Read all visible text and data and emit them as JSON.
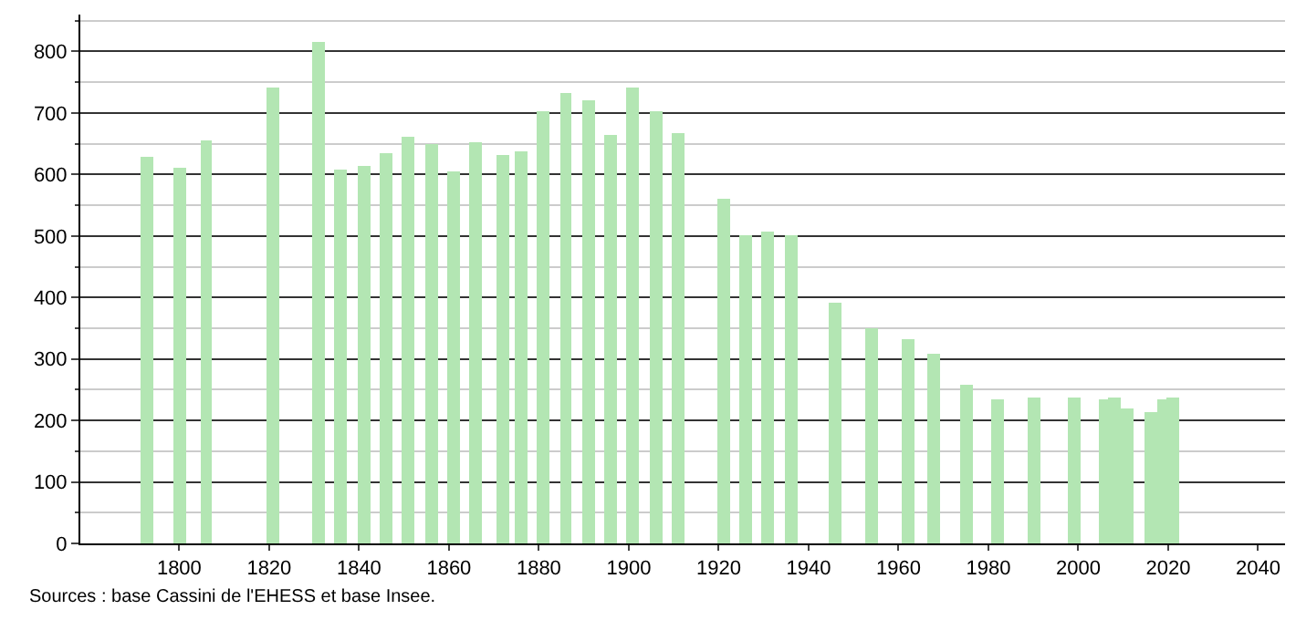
{
  "chart_data": {
    "type": "bar",
    "x": [
      1793,
      1800,
      1806,
      1821,
      1831,
      1836,
      1841,
      1846,
      1851,
      1856,
      1861,
      1866,
      1872,
      1876,
      1881,
      1886,
      1891,
      1896,
      1901,
      1906,
      1911,
      1921,
      1926,
      1931,
      1936,
      1946,
      1954,
      1962,
      1968,
      1975,
      1982,
      1990,
      1999,
      2006,
      2008,
      2011,
      2016,
      2019,
      2021
    ],
    "values": [
      630,
      612,
      655,
      742,
      815,
      607,
      615,
      635,
      660,
      650,
      605,
      652,
      632,
      637,
      703,
      732,
      720,
      665,
      742,
      703,
      668,
      560,
      502,
      508,
      502,
      390,
      350,
      332,
      308,
      258,
      233,
      237,
      237,
      233,
      236,
      220,
      215,
      233,
      237
    ],
    "color": "#b3e6b3",
    "xlim": [
      1778,
      2046
    ],
    "xticks": [
      1800,
      1820,
      1840,
      1860,
      1880,
      1900,
      1920,
      1940,
      1960,
      1980,
      2000,
      2020,
      2040
    ],
    "ylim": [
      0,
      860
    ],
    "yticks": [
      0,
      {
        "value": 50,
        "label": null
      },
      100,
      {
        "value": 150,
        "label": null
      },
      200,
      {
        "value": 250,
        "label": null
      },
      300,
      {
        "value": 350,
        "label": null
      },
      400,
      {
        "value": 450,
        "label": null
      },
      500,
      {
        "value": 550,
        "label": null
      },
      600,
      {
        "value": 650,
        "label": null
      },
      700,
      {
        "value": 750,
        "label": null
      },
      800,
      {
        "value": 850,
        "label": null
      }
    ],
    "grid": "y",
    "legend": false,
    "annotations": [
      "Sources : base Cassini de l'EHESS et base Insee."
    ]
  }
}
